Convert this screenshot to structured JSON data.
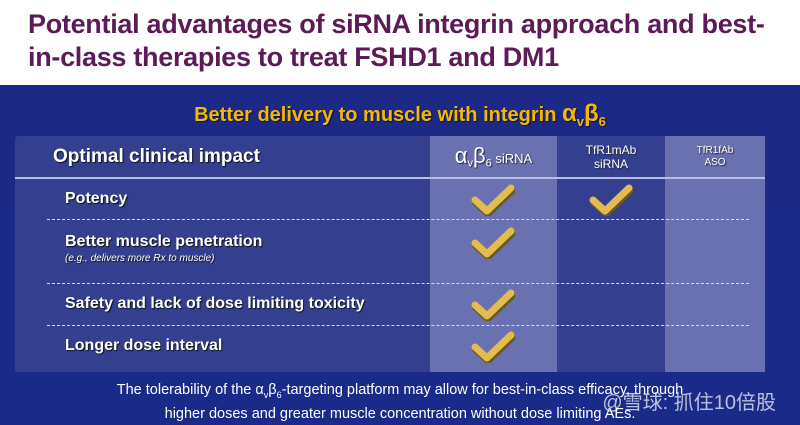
{
  "title": "Potential advantages of siRNA integrin approach and best-in-class therapies to treat FSHD1 and DM1",
  "subtitle": {
    "text": "Better delivery to muscle with integrin ",
    "greek": "α",
    "sub1": "v",
    "greek2": "β",
    "sub2": "6"
  },
  "table": {
    "header": "Optimal clinical impact",
    "columns": [
      {
        "alpha": "α",
        "v": "v",
        "beta": "β",
        "six": "6",
        "suffix": " siRNA"
      },
      {
        "line1": "TfR1mAb",
        "line2": "siRNA"
      },
      {
        "line1": "TfR1fAb",
        "line2": "ASO"
      }
    ],
    "rows": [
      {
        "label": "Potency",
        "note": "",
        "checks": [
          true,
          true,
          false
        ]
      },
      {
        "label": "Better muscle penetration",
        "note": "(e.g., delivers more Rx to muscle)",
        "checks": [
          true,
          false,
          false
        ]
      },
      {
        "label": "Safety and lack of dose limiting toxicity",
        "note": "",
        "checks": [
          true,
          false,
          false
        ]
      },
      {
        "label": "Longer dose interval",
        "note": "",
        "checks": [
          true,
          false,
          false
        ]
      }
    ]
  },
  "footer": {
    "a": "The tolerability of the α",
    "v": "v",
    "b": "β",
    "six": "6",
    "c": "-targeting platform may allow for best-in-class efficacy, through",
    "line2": "higher doses and greater muscle concentration without dose limiting AEs."
  },
  "watermark": "@雪球: 抓住10倍股",
  "colors": {
    "title": "#5c1a57",
    "background": "#1c2a85",
    "accent": "#f5b800",
    "check": "#e2bc4e"
  }
}
